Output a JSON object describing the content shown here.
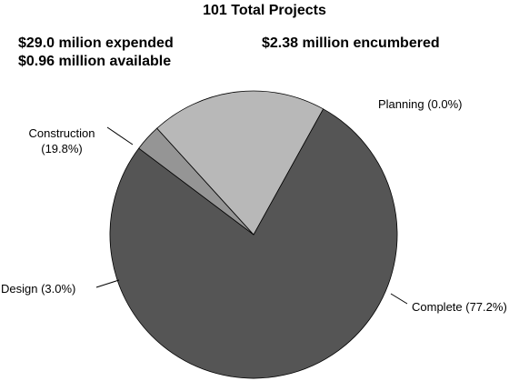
{
  "header": {
    "total_projects": "101 Total Projects",
    "expended": "$29.0 milion expended",
    "available": "$0.96 million available",
    "encumbered": "$2.38 million encumbered"
  },
  "chart_data": {
    "type": "pie",
    "title": "101 Total Projects",
    "slices": [
      {
        "category": "Complete",
        "percent": 77.2,
        "label": "Complete (77.2%)",
        "color": "#555555"
      },
      {
        "category": "Design",
        "percent": 3.0,
        "label": "Design (3.0%)",
        "color": "#959595"
      },
      {
        "category": "Construction",
        "percent": 19.8,
        "label_lines": [
          "Construction",
          "(19.8%)"
        ],
        "color": "#b8b8b8"
      },
      {
        "category": "Planning",
        "percent": 0.0,
        "label": "Planning (0.0%)",
        "color": "#ffffff"
      }
    ]
  }
}
